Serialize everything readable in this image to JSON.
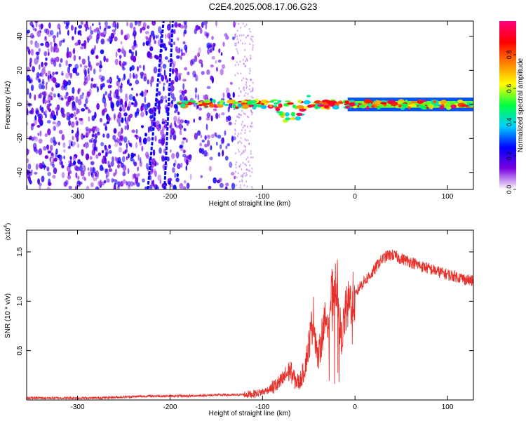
{
  "title": "C2E4.2025.008.17.06.G23",
  "chart_data": [
    {
      "type": "heatmap",
      "xlabel": "Height of straight line (km)",
      "ylabel": "Frequency (Hz)",
      "xlim": [
        -355,
        128
      ],
      "ylim": [
        -50,
        49
      ],
      "x_ticks": [
        -300,
        -200,
        -100,
        0,
        100
      ],
      "y_ticks": [
        40,
        20,
        0,
        -20,
        -40
      ],
      "colorbar": {
        "label": "Normalized spectral amplitude",
        "range": [
          0.0,
          1.0
        ],
        "ticks": [
          "0.0",
          "0.2",
          "0.4",
          "0.6",
          "0.8"
        ],
        "tick_values": [
          0.0,
          0.2,
          0.4,
          0.6,
          0.8
        ],
        "colormap": [
          "#ffffff",
          "#7a00e0",
          "#0000ff",
          "#00d0ff",
          "#00ff40",
          "#ffff00",
          "#ff8000",
          "#ff0000",
          "#ff0080"
        ]
      },
      "features": [
        {
          "name": "noise region",
          "x_range": [
            -355,
            -130
          ],
          "y_range": [
            -50,
            49
          ],
          "level": 0.15
        },
        {
          "name": "diagonal streak A",
          "from": [
            -224,
            -50
          ],
          "to": [
            -207,
            49
          ],
          "level": 0.25
        },
        {
          "name": "diagonal streak B",
          "from": [
            -206,
            -50
          ],
          "to": [
            -197,
            49
          ],
          "level": 0.25
        },
        {
          "name": "main signal band",
          "x_range": [
            -190,
            128
          ],
          "center_hz": 0,
          "level": 0.7
        },
        {
          "name": "dip feature",
          "from": [
            -90,
            6
          ],
          "to": [
            -50,
            -20
          ],
          "level": 0.6
        }
      ]
    },
    {
      "type": "line",
      "xlabel": "Height of straight line (km)",
      "ylabel": "SNR (10 * v/v)",
      "y_multiplier": "(x10^4)",
      "xlim": [
        -355,
        128
      ],
      "ylim": [
        0,
        1.72
      ],
      "x_ticks": [
        -300,
        -200,
        -100,
        0,
        100
      ],
      "y_ticks": [
        0.5,
        1.0,
        1.5
      ],
      "series": [
        {
          "color": "#e8302a",
          "x": [
            -355,
            -320,
            -280,
            -250,
            -220,
            -200,
            -180,
            -150,
            -130,
            -110,
            -100,
            -90,
            -80,
            -75,
            -70,
            -65,
            -60,
            -55,
            -50,
            -45,
            -40,
            -35,
            -30,
            -25,
            -20,
            -15,
            -10,
            -5,
            0,
            5,
            10,
            15,
            20,
            25,
            30,
            35,
            40,
            45,
            50,
            60,
            70,
            80,
            90,
            100,
            110,
            120,
            128
          ],
          "y": [
            0.02,
            0.02,
            0.02,
            0.03,
            0.04,
            0.04,
            0.04,
            0.05,
            0.05,
            0.06,
            0.08,
            0.12,
            0.18,
            0.25,
            0.3,
            0.2,
            0.18,
            0.3,
            0.55,
            0.85,
            0.4,
            0.7,
            0.85,
            1.05,
            1.25,
            0.6,
            0.9,
            1.0,
            1.05,
            1.15,
            1.2,
            1.25,
            1.3,
            1.38,
            1.43,
            1.46,
            1.47,
            1.45,
            1.43,
            1.4,
            1.36,
            1.33,
            1.3,
            1.27,
            1.25,
            1.22,
            1.2
          ]
        }
      ]
    }
  ]
}
